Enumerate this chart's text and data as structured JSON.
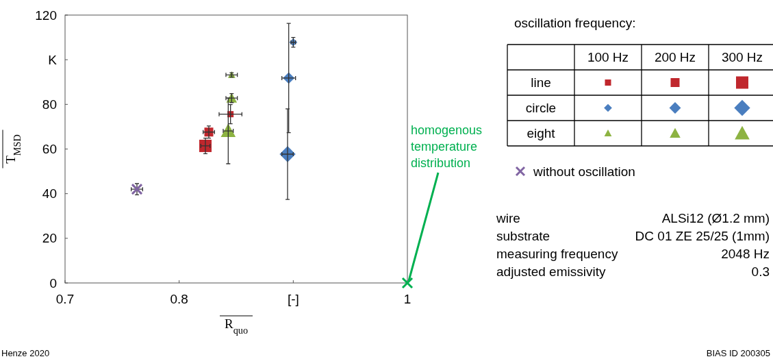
{
  "chart_data": {
    "type": "scatter",
    "xlabel": "R$_{quo}$",
    "ylabel": "T$_{MSD}$",
    "legend_title": "oscillation frequency:",
    "xlim": [
      0.7,
      1
    ],
    "xticks": [
      0.7,
      0.8,
      {
        "value": 0.9,
        "label": "[-]"
      },
      1
    ],
    "ylim": [
      0,
      120
    ],
    "yticks": [
      0,
      20,
      40,
      60,
      80,
      {
        "value": 100,
        "label": "K"
      },
      120
    ],
    "grid": false,
    "legend": "right",
    "series": [
      {
        "color": "#c0272d",
        "marker": "square",
        "x": [
          0.845
        ],
        "values": [
          75.6
        ],
        "errors": [
          4.3
        ],
        "xerrors": [
          0.01
        ]
      },
      {
        "color": "#c0272d",
        "marker": "square",
        "x": [
          0.826
        ],
        "values": [
          67.6
        ],
        "errors": [
          2.7
        ],
        "xerrors": [
          0.005
        ]
      },
      {
        "color": "#c0272d",
        "marker": "square",
        "x": [
          0.823
        ],
        "values": [
          61.4
        ],
        "errors": [
          3.5
        ],
        "xerrors": [
          0.004
        ]
      },
      {
        "color": "#4a7ebf",
        "marker": "diamond",
        "x": [
          0.9
        ],
        "values": [
          107.8
        ],
        "errors": [
          2.2
        ],
        "xerrors": [
          0.002
        ]
      },
      {
        "color": "#4a7ebf",
        "marker": "diamond",
        "x": [
          0.896
        ],
        "values": [
          91.8
        ],
        "errors": [
          24.5
        ],
        "xerrors": [
          0.006
        ]
      },
      {
        "color": "#4a7ebf",
        "marker": "diamond",
        "x": [
          0.895
        ],
        "values": [
          57.7
        ],
        "errors": [
          20.3
        ],
        "xerrors": [
          0.005
        ]
      },
      {
        "color": "#8db342",
        "marker": "triangle",
        "x": [
          0.846
        ],
        "values": [
          93.2
        ],
        "errors": [
          1
        ],
        "xerrors": [
          0.005
        ]
      },
      {
        "color": "#8db342",
        "marker": "triangle",
        "x": [
          0.846
        ],
        "values": [
          82.8
        ],
        "errors": [
          2
        ],
        "xerrors": [
          0.005
        ]
      },
      {
        "color": "#8db342",
        "marker": "triangle",
        "x": [
          0.843
        ],
        "values": [
          68.1
        ],
        "errors": [
          14.7
        ],
        "xerrors": [
          0.0044
        ]
      },
      {
        "name": "without oscillation",
        "color": "#8064a2",
        "marker": "cross",
        "x": [
          0.763
        ],
        "values": [
          42
        ],
        "errors": [
          2.5
        ],
        "xerrors": [
          0.005
        ]
      },
      {
        "color": "#00b050",
        "marker": "cross",
        "x": [
          1
        ],
        "values": [
          0
        ]
      }
    ],
    "annotations": [
      "100 Hz",
      "200 Hz",
      "300 Hz",
      "line",
      "circle",
      "eight",
      {
        "text": "homogenous temperature distribution",
        "x": 1,
        "y": 0
      },
      "wire",
      "ALSi12 (Ø1.2 mm)",
      "substrate",
      "DC 01 ZE 25/25 (1mm)",
      "measuring frequency",
      "2048 Hz",
      "adjusted emissivity",
      "0.3",
      "Henze 2020",
      "BIAS ID 200305"
    ]
  }
}
